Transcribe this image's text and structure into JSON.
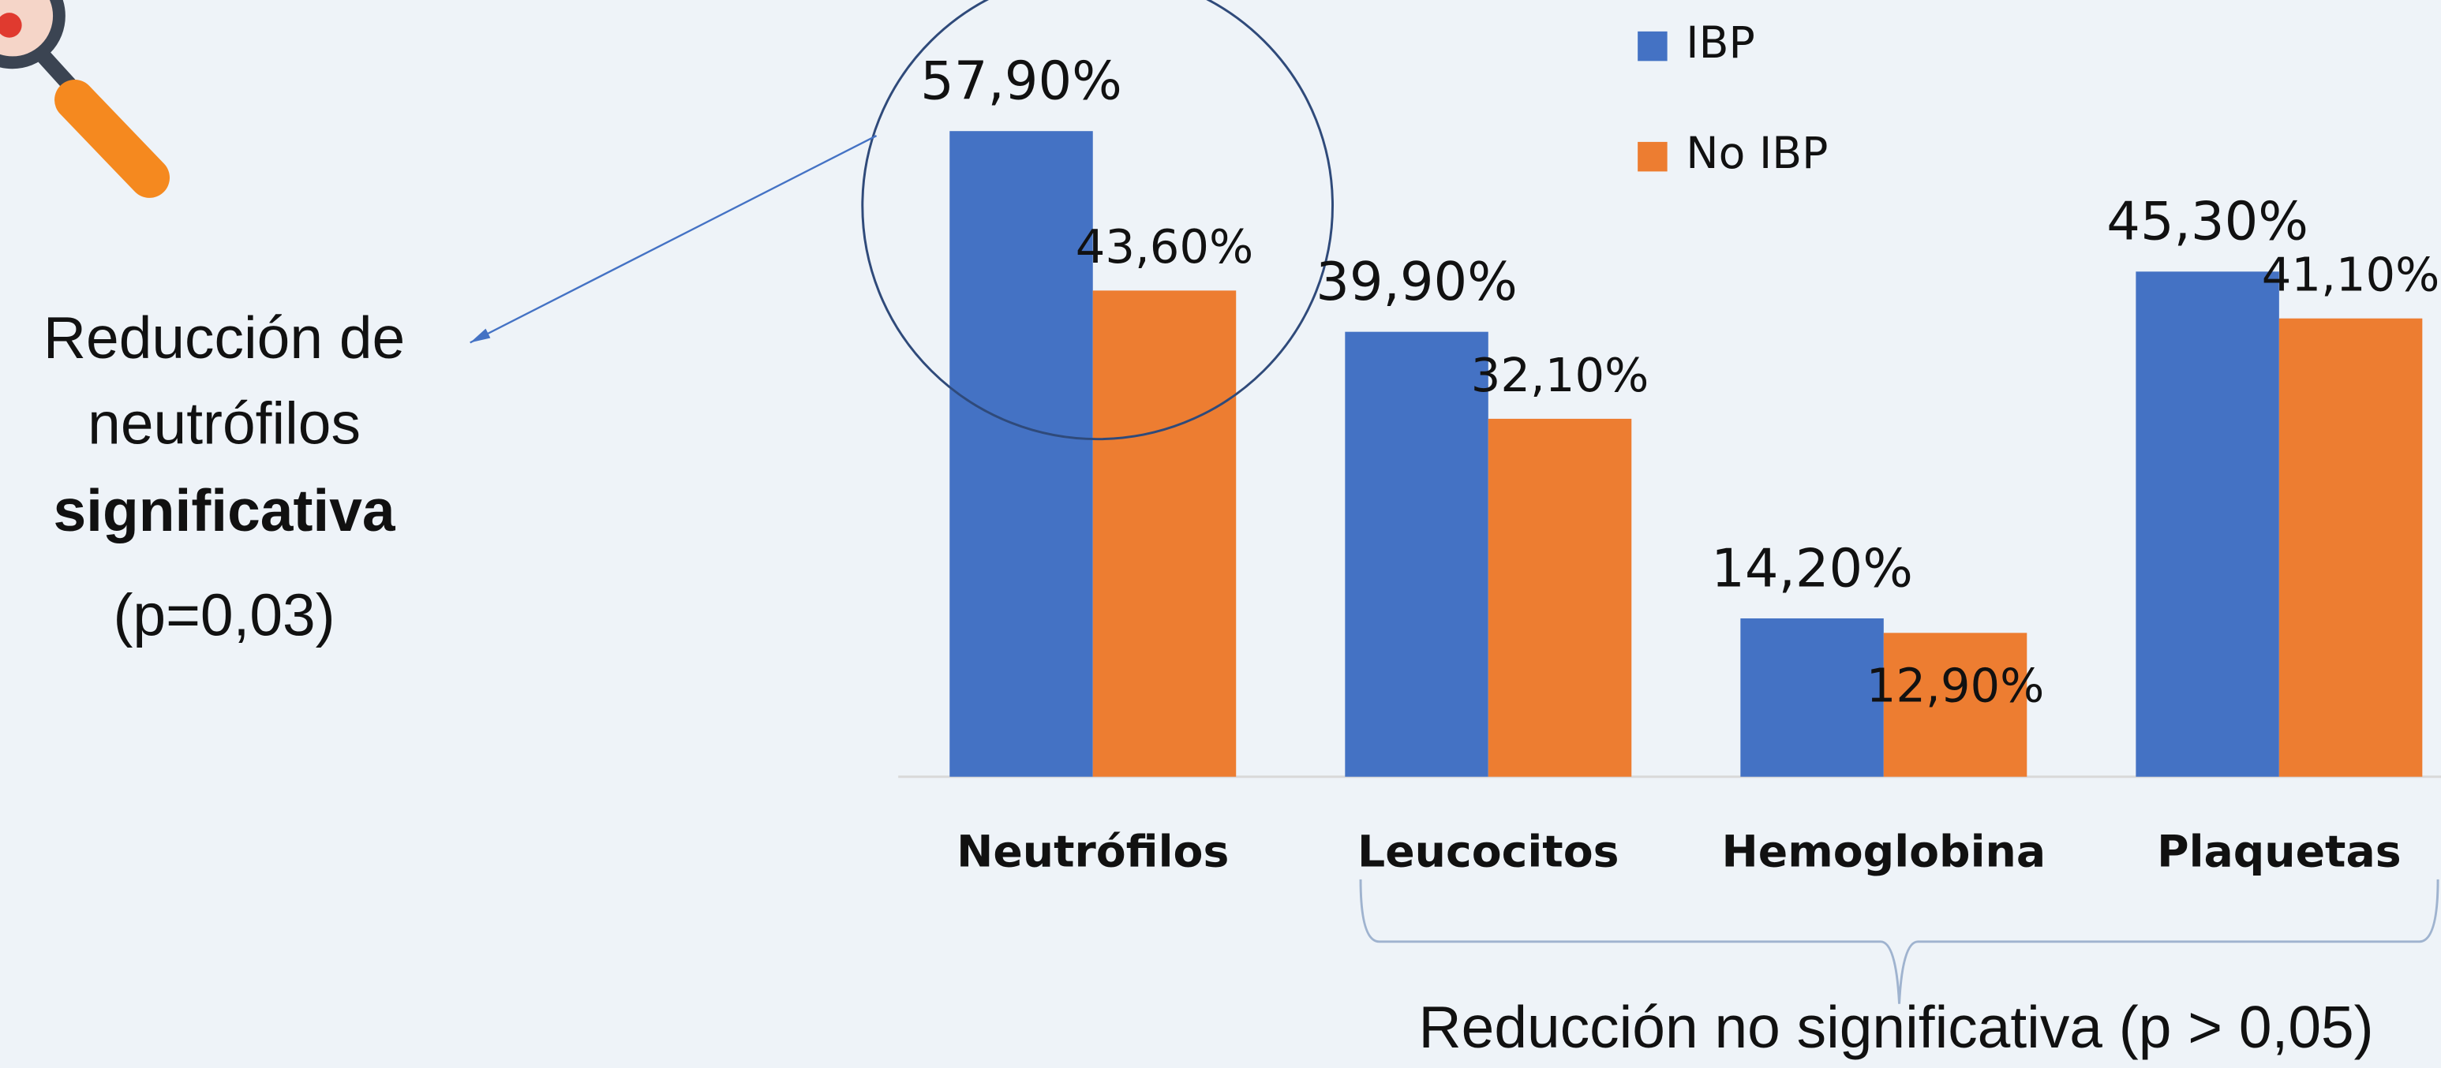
{
  "chart_data": {
    "type": "bar",
    "categories": [
      "Neutrófilos",
      "Leucocitos",
      "Hemoglobina",
      "Plaquetas"
    ],
    "series": [
      {
        "name": "IBP",
        "color": "#4472c4",
        "values": [
          57.9,
          39.9,
          14.2,
          45.3
        ],
        "value_labels": [
          "57,90%",
          "39,90%",
          "14,20%",
          "45,30%"
        ]
      },
      {
        "name": "No IBP",
        "color": "#ed7d31",
        "values": [
          43.6,
          32.1,
          12.9,
          41.1
        ],
        "value_labels": [
          "43,60%",
          "32,10%",
          "12,90%",
          "41,10%"
        ]
      }
    ],
    "ylim": [
      0,
      60
    ],
    "annotations": [
      "Reducción de",
      "neutrófilos",
      "significativa",
      "(p=0,03)",
      "Reducción no significativa (p > 0,05)"
    ]
  }
}
